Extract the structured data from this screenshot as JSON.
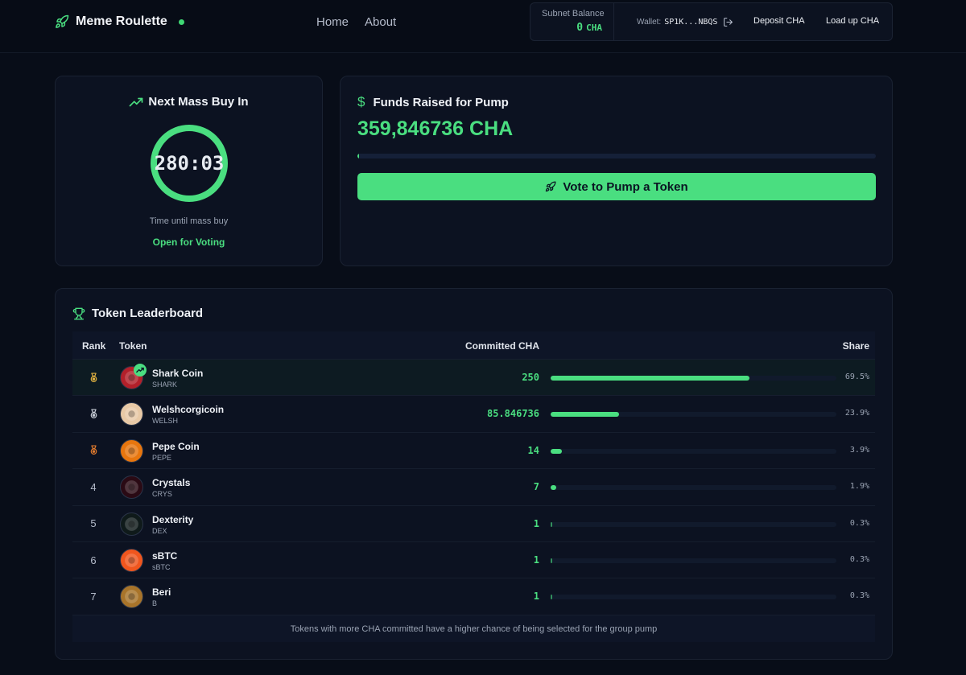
{
  "header": {
    "brand": "Meme Roulette",
    "nav": [
      {
        "label": "Home"
      },
      {
        "label": "About"
      }
    ],
    "balance_label": "Subnet Balance",
    "balance_value": "0",
    "balance_unit": "CHA",
    "wallet_label": "Wallet:",
    "wallet_address": "SP1K...NBQS",
    "deposit_label": "Deposit CHA",
    "loadup_label": "Load up CHA"
  },
  "timer": {
    "title": "Next Mass Buy In",
    "countdown": "280:03",
    "subtitle": "Time until mass buy",
    "status": "Open for Voting"
  },
  "funds": {
    "title": "Funds Raised for Pump",
    "value": "359,846736 CHA",
    "progress": 0.003,
    "vote_label": "Vote to Pump a Token"
  },
  "leaderboard": {
    "title": "Token Leaderboard",
    "columns": {
      "rank": "Rank",
      "token": "Token",
      "committed": "Committed CHA",
      "share": "Share"
    },
    "rows": [
      {
        "rank": "",
        "medal": "gold",
        "name": "Shark Coin",
        "symbol": "SHARK",
        "committed": "250",
        "share": "69.5%",
        "share_value": 69.5,
        "icon": "shark-coin-icon",
        "color": "#b3202a",
        "trending": true
      },
      {
        "rank": "",
        "medal": "silver",
        "name": "Welshcorgicoin",
        "symbol": "WELSH",
        "committed": "85.846736",
        "share": "23.9%",
        "share_value": 23.9,
        "icon": "welsh-corgi-icon",
        "color": "#e8c9a6"
      },
      {
        "rank": "",
        "medal": "bronze",
        "name": "Pepe Coin",
        "symbol": "PEPE",
        "committed": "14",
        "share": "3.9%",
        "share_value": 3.9,
        "icon": "pepe-coin-icon",
        "color": "#e8760e"
      },
      {
        "rank": "4",
        "medal": "",
        "name": "Crystals",
        "symbol": "CRYS",
        "committed": "7",
        "share": "1.9%",
        "share_value": 1.9,
        "icon": "crystals-icon",
        "color": "#2a0a14"
      },
      {
        "rank": "5",
        "medal": "",
        "name": "Dexterity",
        "symbol": "DEX",
        "committed": "1",
        "share": "0.3%",
        "share_value": 0.3,
        "icon": "dexterity-icon",
        "color": "#0f1a1a"
      },
      {
        "rank": "6",
        "medal": "",
        "name": "sBTC",
        "symbol": "sBTC",
        "committed": "1",
        "share": "0.3%",
        "share_value": 0.3,
        "icon": "sbtc-icon",
        "color": "#f0561e"
      },
      {
        "rank": "7",
        "medal": "",
        "name": "Beri",
        "symbol": "B",
        "committed": "1",
        "share": "0.3%",
        "share_value": 0.3,
        "icon": "beri-coin-icon",
        "color": "#a8742a"
      }
    ],
    "footer": "Tokens with more CHA committed have a higher chance of being selected for the group pump"
  },
  "colors": {
    "accent": "#4ade80",
    "background": "#080d18",
    "card": "#0c1221",
    "gold": "#e3b341",
    "silver": "#c9ced8",
    "bronze": "#e07a2e"
  }
}
